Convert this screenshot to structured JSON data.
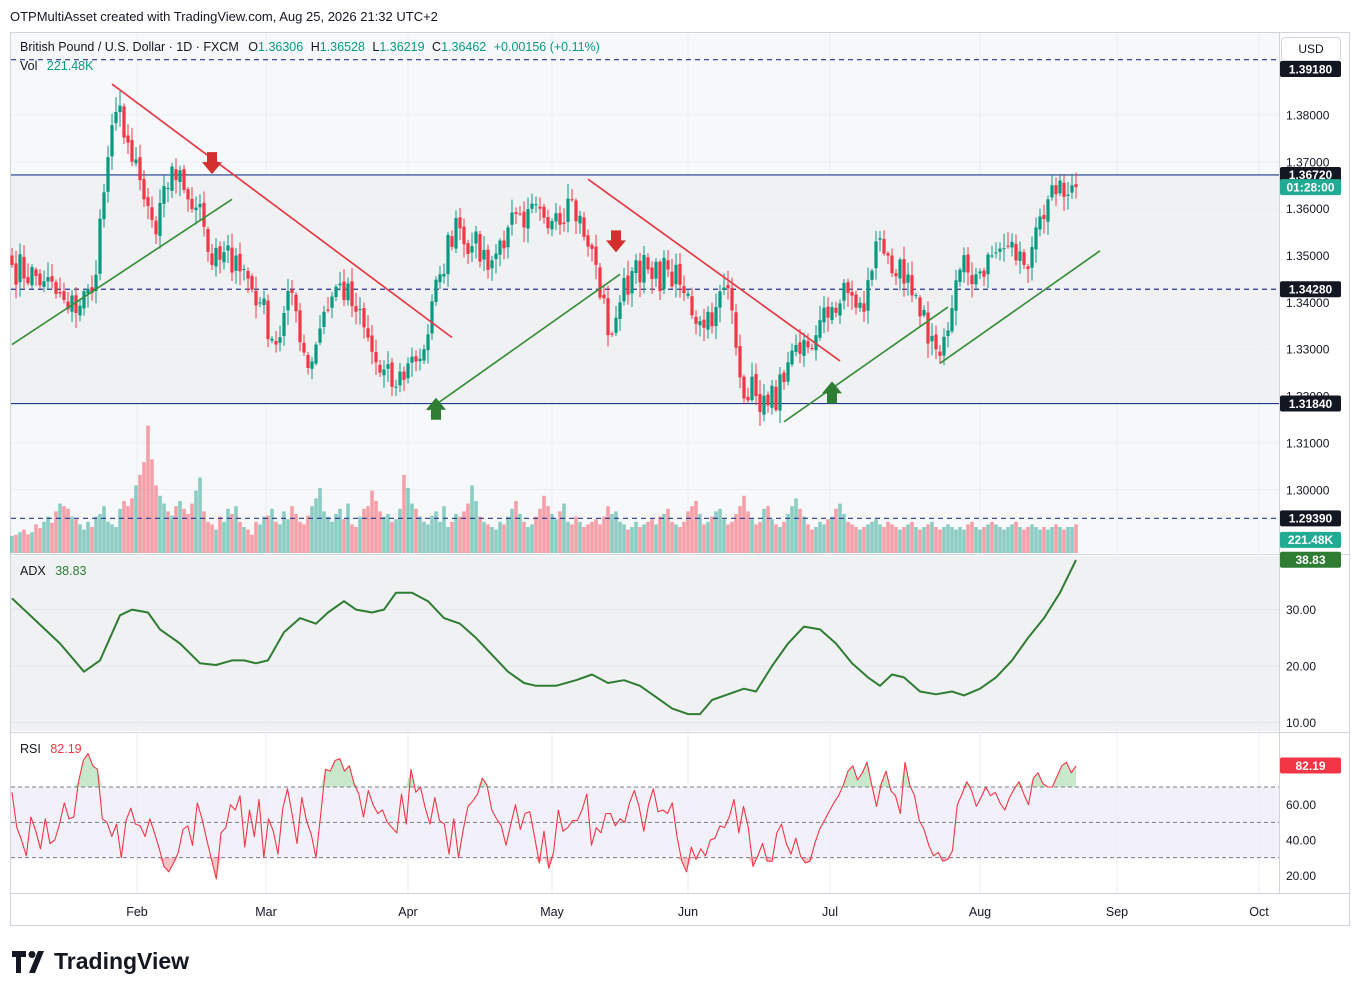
{
  "header": {
    "credit": "OTPMultiAsset created with TradingView.com, Aug 25, 2026 21:32 UTC+2"
  },
  "legend": {
    "symbol": "British Pound / U.S. Dollar · 1D · FXCM",
    "o_label": "O",
    "o_value": "1.36306",
    "h_label": "H",
    "h_value": "1.36528",
    "l_label": "L",
    "l_value": "1.36219",
    "c_label": "C",
    "c_value": "1.36462",
    "change": "+0.00156 (+0.11%)",
    "vol_label": "Vol",
    "vol_value": "221.48K"
  },
  "currency_button": "USD",
  "brand": "TradingView",
  "chart_data": [
    {
      "type": "candlestick",
      "symbol": "GBP/USD",
      "interval": "1D",
      "y_ticks": [
        "1.38000",
        "1.37000",
        "1.36000",
        "1.35000",
        "1.34000",
        "1.33000",
        "1.32000",
        "1.31000",
        "1.30000"
      ],
      "ylim": [
        1.2865,
        1.3975
      ],
      "x_ticks": [
        "Feb",
        "Mar",
        "Apr",
        "May",
        "Jun",
        "Jul",
        "Aug",
        "Sep",
        "Oct"
      ],
      "price_badges": [
        {
          "label": "1.39180",
          "value": 1.3918,
          "color": "#131722",
          "style": "dashed"
        },
        {
          "label": "1.36720",
          "value": 1.3672,
          "color": "#131722",
          "style": "solid"
        },
        {
          "label": "01:28:00",
          "value": 1.3646,
          "color": "#22ab94",
          "style": "none"
        },
        {
          "label": "1.34280",
          "value": 1.3428,
          "color": "#131722",
          "style": "dashed"
        },
        {
          "label": "1.31840",
          "value": 1.3184,
          "color": "#131722",
          "style": "solid"
        },
        {
          "label": "1.29390",
          "value": 1.2939,
          "color": "#131722",
          "style": "dashed"
        },
        {
          "label": "221.48K",
          "value": 1.2893,
          "color": "#22ab94",
          "style": "none"
        }
      ],
      "anchors": [
        {
          "d": 0,
          "c": 1.348
        },
        {
          "d": 8,
          "c": 1.3445
        },
        {
          "d": 14,
          "c": 1.3385
        },
        {
          "d": 20,
          "c": 1.342
        },
        {
          "d": 24,
          "c": 1.371
        },
        {
          "d": 27,
          "c": 1.382
        },
        {
          "d": 30,
          "c": 1.37
        },
        {
          "d": 33,
          "c": 1.362
        },
        {
          "d": 36,
          "c": 1.3545
        },
        {
          "d": 40,
          "c": 1.369
        },
        {
          "d": 43,
          "c": 1.364
        },
        {
          "d": 47,
          "c": 1.361
        },
        {
          "d": 50,
          "c": 1.348
        },
        {
          "d": 56,
          "c": 1.35
        },
        {
          "d": 62,
          "c": 1.34
        },
        {
          "d": 66,
          "c": 1.331
        },
        {
          "d": 70,
          "c": 1.342
        },
        {
          "d": 74,
          "c": 1.326
        },
        {
          "d": 78,
          "c": 1.338
        },
        {
          "d": 82,
          "c": 1.344
        },
        {
          "d": 86,
          "c": 1.338
        },
        {
          "d": 92,
          "c": 1.325
        },
        {
          "d": 96,
          "c": 1.322
        },
        {
          "d": 99,
          "c": 1.327
        },
        {
          "d": 103,
          "c": 1.33
        },
        {
          "d": 107,
          "c": 1.346
        },
        {
          "d": 111,
          "c": 1.358
        },
        {
          "d": 115,
          "c": 1.352
        },
        {
          "d": 120,
          "c": 1.349
        },
        {
          "d": 124,
          "c": 1.356
        },
        {
          "d": 128,
          "c": 1.356
        },
        {
          "d": 132,
          "c": 1.36
        },
        {
          "d": 136,
          "c": 1.359
        },
        {
          "d": 140,
          "c": 1.362
        },
        {
          "d": 143,
          "c": 1.354
        },
        {
          "d": 146,
          "c": 1.348
        },
        {
          "d": 149,
          "c": 1.333
        },
        {
          "d": 152,
          "c": 1.34
        },
        {
          "d": 156,
          "c": 1.349
        },
        {
          "d": 160,
          "c": 1.345
        },
        {
          "d": 164,
          "c": 1.347
        },
        {
          "d": 168,
          "c": 1.342
        },
        {
          "d": 172,
          "c": 1.336
        },
        {
          "d": 176,
          "c": 1.339
        },
        {
          "d": 179,
          "c": 1.343
        },
        {
          "d": 182,
          "c": 1.324
        },
        {
          "d": 186,
          "c": 1.32
        },
        {
          "d": 189,
          "c": 1.318
        },
        {
          "d": 193,
          "c": 1.323
        },
        {
          "d": 197,
          "c": 1.329
        },
        {
          "d": 201,
          "c": 1.333
        },
        {
          "d": 205,
          "c": 1.339
        },
        {
          "d": 209,
          "c": 1.342
        },
        {
          "d": 213,
          "c": 1.338
        },
        {
          "d": 216,
          "c": 1.353
        },
        {
          "d": 219,
          "c": 1.35
        },
        {
          "d": 223,
          "c": 1.344
        },
        {
          "d": 227,
          "c": 1.337
        },
        {
          "d": 231,
          "c": 1.33
        },
        {
          "d": 234,
          "c": 1.334
        },
        {
          "d": 237,
          "c": 1.347
        },
        {
          "d": 241,
          "c": 1.346
        },
        {
          "d": 245,
          "c": 1.35
        },
        {
          "d": 249,
          "c": 1.352
        },
        {
          "d": 253,
          "c": 1.348
        },
        {
          "d": 256,
          "c": 1.356
        },
        {
          "d": 259,
          "c": 1.362
        },
        {
          "d": 262,
          "c": 1.366
        },
        {
          "d": 264,
          "c": 1.363
        },
        {
          "d": 266,
          "c": 1.3646
        }
      ],
      "trendlines": [
        {
          "color": "#e53945",
          "from": {
            "d": 25,
            "p": 1.3866
          },
          "to": {
            "d": 110,
            "p": 1.3325
          }
        },
        {
          "color": "#e53945",
          "from": {
            "d": 144,
            "p": 1.3663
          },
          "to": {
            "d": 207,
            "p": 1.3275
          }
        },
        {
          "color": "#388e3c",
          "from": {
            "d": 0,
            "p": 1.331
          },
          "to": {
            "d": 55,
            "p": 1.362
          }
        },
        {
          "color": "#388e3c",
          "from": {
            "d": 104,
            "p": 1.317
          },
          "to": {
            "d": 152,
            "p": 1.346
          }
        },
        {
          "color": "#388e3c",
          "from": {
            "d": 193,
            "p": 1.3145
          },
          "to": {
            "d": 234,
            "p": 1.339
          }
        },
        {
          "color": "#388e3c",
          "from": {
            "d": 232,
            "p": 1.327
          },
          "to": {
            "d": 272,
            "p": 1.351
          }
        }
      ],
      "signals": [
        {
          "type": "sell",
          "d": 50,
          "p": 1.3695
        },
        {
          "type": "sell",
          "d": 151,
          "p": 1.3528
        },
        {
          "type": "buy",
          "d": 106,
          "p": 1.3175
        },
        {
          "type": "buy",
          "d": 205,
          "p": 1.321
        }
      ]
    },
    {
      "type": "line",
      "name": "ADX",
      "label": "ADX",
      "value_label": "38.83",
      "y_ticks": [
        "30.00",
        "20.00",
        "10.00"
      ],
      "ylim": [
        8.5,
        39.5
      ],
      "anchors": [
        {
          "d": 0,
          "v": 32.0
        },
        {
          "d": 6,
          "v": 28.0
        },
        {
          "d": 12,
          "v": 24.0
        },
        {
          "d": 18,
          "v": 19.0
        },
        {
          "d": 22,
          "v": 21.0
        },
        {
          "d": 27,
          "v": 29.0
        },
        {
          "d": 30,
          "v": 30.0
        },
        {
          "d": 34,
          "v": 29.5
        },
        {
          "d": 37,
          "v": 26.5
        },
        {
          "d": 42,
          "v": 24.0
        },
        {
          "d": 47,
          "v": 20.5
        },
        {
          "d": 51,
          "v": 20.2
        },
        {
          "d": 55,
          "v": 21.0
        },
        {
          "d": 58,
          "v": 21.0
        },
        {
          "d": 61,
          "v": 20.5
        },
        {
          "d": 64,
          "v": 21.0
        },
        {
          "d": 68,
          "v": 26.0
        },
        {
          "d": 72,
          "v": 28.5
        },
        {
          "d": 76,
          "v": 27.5
        },
        {
          "d": 79,
          "v": 29.5
        },
        {
          "d": 83,
          "v": 31.5
        },
        {
          "d": 86,
          "v": 30.0
        },
        {
          "d": 90,
          "v": 29.5
        },
        {
          "d": 93,
          "v": 30.0
        },
        {
          "d": 96,
          "v": 33.0
        },
        {
          "d": 100,
          "v": 33.0
        },
        {
          "d": 104,
          "v": 31.5
        },
        {
          "d": 108,
          "v": 28.5
        },
        {
          "d": 112,
          "v": 27.5
        },
        {
          "d": 116,
          "v": 25.0
        },
        {
          "d": 120,
          "v": 22.0
        },
        {
          "d": 124,
          "v": 19.0
        },
        {
          "d": 128,
          "v": 17.0
        },
        {
          "d": 131,
          "v": 16.5
        },
        {
          "d": 136,
          "v": 16.5
        },
        {
          "d": 141,
          "v": 17.5
        },
        {
          "d": 145,
          "v": 18.5
        },
        {
          "d": 149,
          "v": 17.0
        },
        {
          "d": 153,
          "v": 17.5
        },
        {
          "d": 157,
          "v": 16.5
        },
        {
          "d": 161,
          "v": 14.5
        },
        {
          "d": 165,
          "v": 12.5
        },
        {
          "d": 169,
          "v": 11.5
        },
        {
          "d": 172,
          "v": 11.5
        },
        {
          "d": 175,
          "v": 14.0
        },
        {
          "d": 179,
          "v": 15.0
        },
        {
          "d": 183,
          "v": 16.0
        },
        {
          "d": 186,
          "v": 15.5
        },
        {
          "d": 190,
          "v": 20.0
        },
        {
          "d": 194,
          "v": 24.0
        },
        {
          "d": 198,
          "v": 27.0
        },
        {
          "d": 202,
          "v": 26.5
        },
        {
          "d": 206,
          "v": 24.0
        },
        {
          "d": 210,
          "v": 20.5
        },
        {
          "d": 214,
          "v": 18.0
        },
        {
          "d": 217,
          "v": 16.5
        },
        {
          "d": 220,
          "v": 18.5
        },
        {
          "d": 223,
          "v": 18.0
        },
        {
          "d": 227,
          "v": 15.5
        },
        {
          "d": 231,
          "v": 15.0
        },
        {
          "d": 235,
          "v": 15.5
        },
        {
          "d": 238,
          "v": 14.8
        },
        {
          "d": 242,
          "v": 16.0
        },
        {
          "d": 246,
          "v": 18.0
        },
        {
          "d": 250,
          "v": 21.0
        },
        {
          "d": 254,
          "v": 25.0
        },
        {
          "d": 258,
          "v": 28.5
        },
        {
          "d": 262,
          "v": 33.0
        },
        {
          "d": 266,
          "v": 38.8
        }
      ]
    },
    {
      "type": "line",
      "name": "RSI",
      "label": "RSI",
      "value_label": "82.19",
      "y_ticks": [
        "60.00",
        "40.00",
        "20.00"
      ],
      "ylim": [
        10,
        100
      ],
      "bands": [
        30,
        50,
        70
      ],
      "values": [
        67,
        47,
        40,
        31,
        53,
        45,
        35,
        52,
        38,
        40,
        49,
        61,
        52,
        53,
        73,
        85,
        89,
        82,
        80,
        52,
        50,
        42,
        49,
        30,
        51,
        58,
        49,
        48,
        42,
        52,
        44,
        35,
        25,
        22,
        27,
        33,
        46,
        48,
        37,
        61,
        52,
        40,
        29,
        18,
        44,
        47,
        60,
        57,
        65,
        36,
        57,
        42,
        63,
        30,
        52,
        45,
        32,
        58,
        69,
        54,
        38,
        64,
        51,
        43,
        30,
        55,
        80,
        79,
        85,
        86,
        79,
        82,
        72,
        66,
        53,
        68,
        60,
        55,
        57,
        50,
        47,
        44,
        66,
        49,
        80,
        67,
        70,
        58,
        49,
        64,
        51,
        49,
        32,
        52,
        30,
        46,
        59,
        62,
        66,
        75,
        71,
        57,
        52,
        48,
        37,
        49,
        60,
        46,
        55,
        56,
        42,
        27,
        45,
        24,
        33,
        57,
        45,
        47,
        51,
        51,
        57,
        66,
        37,
        47,
        44,
        55,
        55,
        48,
        52,
        50,
        61,
        68,
        59,
        45,
        60,
        69,
        56,
        57,
        55,
        61,
        42,
        28,
        22,
        36,
        29,
        35,
        31,
        40,
        41,
        48,
        47,
        53,
        63,
        44,
        59,
        47,
        25,
        31,
        38,
        28,
        28,
        44,
        49,
        38,
        32,
        41,
        31,
        27,
        28,
        38,
        46,
        51,
        56,
        61,
        65,
        71,
        79,
        82,
        74,
        78,
        84,
        71,
        59,
        72,
        79,
        68,
        65,
        55,
        84,
        71,
        65,
        51,
        46,
        37,
        31,
        33,
        28,
        29,
        34,
        60,
        66,
        73,
        68,
        59,
        64,
        70,
        65,
        67,
        61,
        57,
        64,
        69,
        73,
        66,
        60,
        75,
        78,
        72,
        70,
        70,
        76,
        82,
        84,
        78,
        82
      ],
      "overbought_fill": "#4caf50",
      "oversold_fill": "#f23645"
    },
    {
      "type": "bar",
      "name": "Volume",
      "label": "Vol",
      "value_label": "221.48K",
      "values": [
        0.33,
        0.35,
        0.4,
        0.45,
        0.36,
        0.4,
        0.55,
        0.48,
        0.6,
        0.7,
        0.58,
        0.8,
        0.95,
        0.9,
        0.85,
        0.7,
        0.65,
        0.55,
        0.45,
        0.6,
        0.5,
        0.7,
        0.75,
        0.9,
        0.6,
        0.55,
        0.5,
        0.85,
        1.0,
        0.9,
        1.05,
        1.3,
        1.5,
        1.75,
        2.45,
        1.8,
        1.3,
        1.1,
        0.95,
        0.8,
        0.72,
        0.9,
        1.0,
        0.85,
        0.75,
        0.95,
        1.2,
        1.45,
        0.8,
        0.6,
        0.55,
        0.45,
        0.7,
        0.6,
        0.85,
        0.75,
        0.9,
        0.6,
        0.5,
        0.45,
        0.35,
        0.6,
        0.55,
        0.7,
        0.72,
        0.85,
        0.6,
        0.55,
        0.8,
        0.65,
        0.9,
        0.75,
        0.6,
        0.55,
        0.72,
        0.9,
        1.05,
        1.25,
        0.8,
        0.7,
        0.6,
        0.75,
        0.85,
        0.65,
        0.95,
        0.55,
        0.5,
        0.7,
        0.85,
        0.9,
        1.2,
        1.0,
        0.8,
        0.7,
        0.75,
        0.6,
        0.65,
        0.85,
        1.5,
        1.25,
        0.95,
        0.85,
        0.7,
        0.6,
        0.55,
        0.72,
        0.8,
        0.6,
        0.9,
        0.5,
        0.6,
        0.75,
        0.7,
        0.8,
        0.95,
        1.3,
        1.0,
        0.7,
        0.6,
        0.55,
        0.5,
        0.45,
        0.6,
        0.55,
        0.7,
        0.85,
        1.0,
        0.75,
        0.6,
        0.5,
        0.55,
        0.7,
        0.85,
        1.1,
        0.9,
        0.75,
        0.65,
        0.8,
        0.95,
        0.6,
        0.55,
        0.7,
        0.6,
        0.5,
        0.55,
        0.6,
        0.65,
        0.55,
        0.7,
        0.9,
        0.75,
        0.8,
        0.6,
        0.55,
        0.45,
        0.5,
        0.6,
        0.5,
        0.55,
        0.6,
        0.65,
        0.55,
        0.7,
        0.75,
        0.85,
        0.6,
        0.55,
        0.5,
        0.6,
        0.8,
        0.9,
        1.0,
        0.75,
        0.55,
        0.6,
        0.7,
        0.8,
        0.85,
        0.65,
        0.55,
        0.6,
        0.75,
        0.9,
        1.1,
        0.8,
        0.65,
        0.55,
        0.6,
        0.85,
        0.9,
        0.65,
        0.55,
        0.5,
        0.6,
        0.75,
        0.9,
        1.05,
        0.85,
        0.7,
        0.55,
        0.45,
        0.5,
        0.6,
        0.55,
        0.65,
        0.7,
        0.85,
        0.95,
        0.75,
        0.6,
        0.55,
        0.5,
        0.45,
        0.5,
        0.55,
        0.6,
        0.65,
        0.55,
        0.5,
        0.6,
        0.55,
        0.5,
        0.45,
        0.5,
        0.55,
        0.6,
        0.5,
        0.45,
        0.5,
        0.55,
        0.6,
        0.5,
        0.45,
        0.5,
        0.55,
        0.5,
        0.45,
        0.5,
        0.45,
        0.55,
        0.6,
        0.5,
        0.45,
        0.5,
        0.55,
        0.6,
        0.55,
        0.5,
        0.45,
        0.5,
        0.55,
        0.6,
        0.5,
        0.45,
        0.5,
        0.55,
        0.5,
        0.45,
        0.5,
        0.45,
        0.5,
        0.55,
        0.5,
        0.45,
        0.5,
        0.5,
        0.55,
        0.5,
        0.5,
        0.45,
        0.5,
        0.55,
        0.5,
        0.45,
        0.5
      ]
    }
  ]
}
